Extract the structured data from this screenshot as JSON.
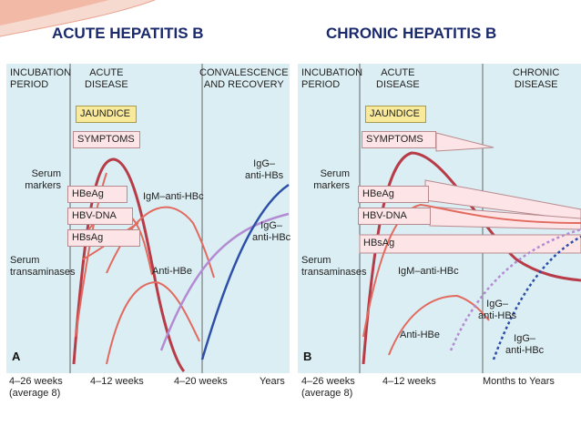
{
  "slide": {
    "title_left": "ACUTE HEPATITIS  B",
    "title_right": "CHRONIC HEPATITIS B"
  },
  "panel_a": {
    "letter": "A",
    "phase_incubation": "INCUBATION\nPERIOD",
    "phase_acute": "ACUTE\nDISEASE",
    "phase_convalescence": "CONVALESCENCE\nAND RECOVERY",
    "jaundice": "JAUNDICE",
    "symptoms": "SYMPTOMS",
    "serum_markers": "Serum\nmarkers",
    "hbeag": "HBeAg",
    "hbv_dna": "HBV-DNA",
    "hbsag": "HBsAg",
    "igm_anti_hbc": "IgM–anti-HBc",
    "igg_anti_hbs": "IgG–\nanti-HBs",
    "igg_anti_hbc": "IgG–\nanti-HBc",
    "anti_hbe": "Anti-HBe",
    "serum_transaminases": "Serum\ntransaminases",
    "axis": [
      "4–26 weeks\n(average 8)",
      "4–12 weeks",
      "4–20 weeks",
      "Years"
    ]
  },
  "panel_b": {
    "letter": "B",
    "phase_incubation": "INCUBATION\nPERIOD",
    "phase_acute": "ACUTE\nDISEASE",
    "phase_chronic": "CHRONIC\nDISEASE",
    "jaundice": "JAUNDICE",
    "symptoms": "SYMPTOMS",
    "serum_markers": "Serum\nmarkers",
    "hbeag": "HBeAg",
    "hbv_dna": "HBV-DNA",
    "hbsag": "HBsAg",
    "igm_anti_hbc": "IgM–anti-HBc",
    "igg_anti_hbs": "IgG–\nanti-HBs",
    "igg_anti_hbc": "IgG–\nanti-HBc",
    "anti_hbe": "Anti-HBe",
    "serum_transaminases": "Serum\ntransaminases",
    "axis": [
      "4–26 weeks\n(average 8)",
      "4–12 weeks",
      "Months to Years"
    ]
  },
  "colors": {
    "title": "#1a2a6c",
    "panel_bg": "#dbeef3",
    "transaminase_curve": "#b73c48",
    "marker_curve": "#e26a5f",
    "igg_hbs_curve": "#b38bd2",
    "igg_hbc_curve": "#2d4fa8",
    "jaundice_box": "#f8ea9a",
    "marker_box": "#fde4e6"
  }
}
